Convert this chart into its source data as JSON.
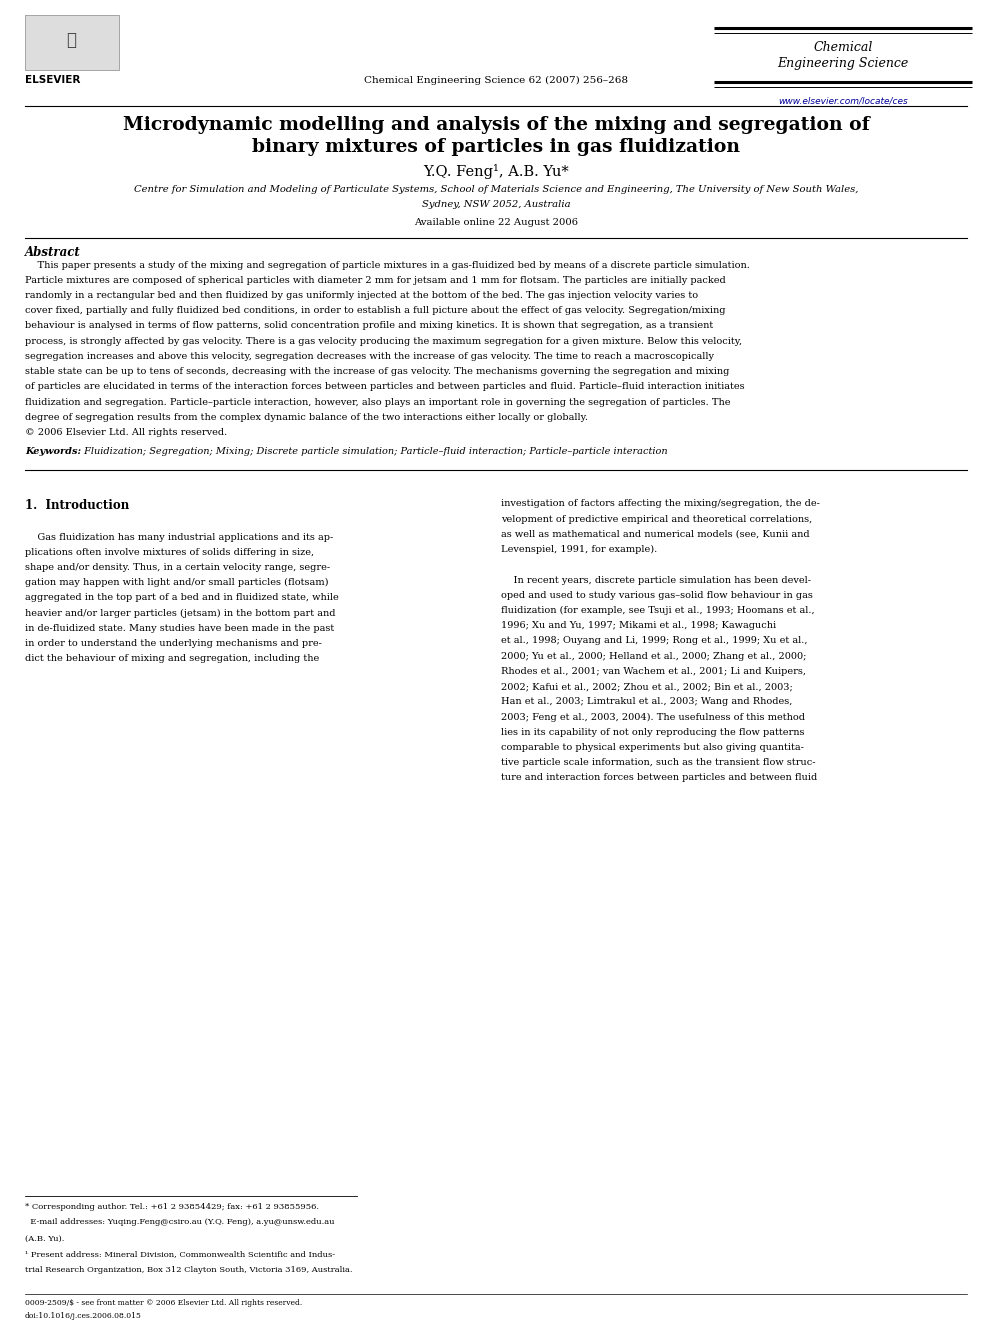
{
  "bg_color": "#ffffff",
  "title_line1": "Microdynamic modelling and analysis of the mixing and segregation of",
  "title_line2": "binary mixtures of particles in gas fluidization",
  "authors": "Y.Q. Feng¹, A.B. Yu*",
  "affiliation1": "Centre for Simulation and Modeling of Particulate Systems, School of Materials Science and Engineering, The University of New South Wales,",
  "affiliation2": "Sydney, NSW 2052, Australia",
  "available": "Available online 22 August 2006",
  "journal_header": "Chemical Engineering Science 62 (2007) 256–268",
  "journal_name_line1": "Chemical",
  "journal_name_line2": "Engineering Science",
  "journal_url": "www.elsevier.com/locate/ces",
  "abstract_title": "Abstract",
  "abstract_text": "    This paper presents a study of the mixing and segregation of particle mixtures in a gas-fluidized bed by means of a discrete particle simulation. Particle mixtures are composed of spherical particles with diameter 2 mm for jetsam and 1 mm for flotsam. The particles are initially packed randomly in a rectangular bed and then fluidized by gas uniformly injected at the bottom of the bed. The gas injection velocity varies to cover fixed, partially and fully fluidized bed conditions, in order to establish a full picture about the effect of gas velocity. Segregation/mixing behaviour is analysed in terms of flow patterns, solid concentration profile and mixing kinetics. It is shown that segregation, as a transient process, is strongly affected by gas velocity. There is a gas velocity producing the maximum segregation for a given mixture. Below this velocity, segregation increases and above this velocity, segregation decreases with the increase of gas velocity. The time to reach a macroscopically stable state can be up to tens of seconds, decreasing with the increase of gas velocity. The mechanisms governing the segregation and mixing of particles are elucidated in terms of the interaction forces between particles and between particles and fluid. Particle–fluid interaction initiates fluidization and segregation. Particle–particle interaction, however, also plays an important role in governing the segregation of particles. The degree of segregation results from the complex dynamic balance of the two interactions either locally or globally.",
  "copyright": "© 2006 Elsevier Ltd. All rights reserved.",
  "keywords_label": "Keywords:",
  "keywords_text": " Fluidization; Segregation; Mixing; Discrete particle simulation; Particle–fluid interaction; Particle–particle interaction",
  "section1_title": "1.  Introduction",
  "intro_left": "    Gas fluidization has many industrial applications and its applications often involve mixtures of solids differing in size, shape and/or density. Thus, in a certain velocity range, segregation may happen with light and/or small particles (flotsam) aggregated in the top part of a bed and in fluidized state, while heavier and/or larger particles (jetsam) in the bottom part and in de-fluidized state. Many studies have been made in the past in order to understand the underlying mechanisms and predict the behaviour of mixing and segregation, including the",
  "intro_right1": "investigation of factors affecting the mixing/segregation, the development of predictive empirical and theoretical correlations, as well as mathematical and numerical models (see, Kunii and Levenspiel, 1991, for example).",
  "intro_right2": "    In recent years, discrete particle simulation has been developed and used to study various gas–solid flow behaviour in gas fluidization (for example, see Tsuji et al., 1993; Hoomans et al., 1996; Xu and Yu, 1997; Mikami et al., 1998; Kawaguchi et al., 1998; Ouyang and Li, 1999; Rong et al., 1999; Xu et al., 2000; Yu et al., 2000; Helland et al., 2000; Zhang et al., 2000; Rhodes et al., 2001; van Wachem et al., 2001; Li and Kuipers, 2002; Kafui et al., 2002; Zhou et al., 2002; Bin et al., 2003; Han et al., 2003; Limtrakul et al., 2003; Wang and Rhodes, 2003; Feng et al., 2003, 2004). The usefulness of this method lies in its capability of not only reproducing the flow patterns comparable to physical experiments but also giving quantitative particle scale information, such as the transient flow structure and interaction forces between particles and between fluid",
  "footnote_star": "* Corresponding author. Tel.: +61 2 93854429; fax: +61 2 93855956.",
  "footnote_email": "  E-mail addresses: Yuqing.Feng@csiro.au (Y.Q. Feng), a.yu@unsw.edu.au",
  "footnote_email2": "(A.B. Yu).",
  "footnote_1": "¹ Present address: Mineral Division, Commonwealth Scientific and Industrial Research Organization, Box 312 Clayton South, Victoria 3169, Australia.",
  "footnote_issn": "0009-2509/$ - see front matter © 2006 Elsevier Ltd. All rights reserved.",
  "footnote_doi": "doi:10.1016/j.ces.2006.08.015"
}
